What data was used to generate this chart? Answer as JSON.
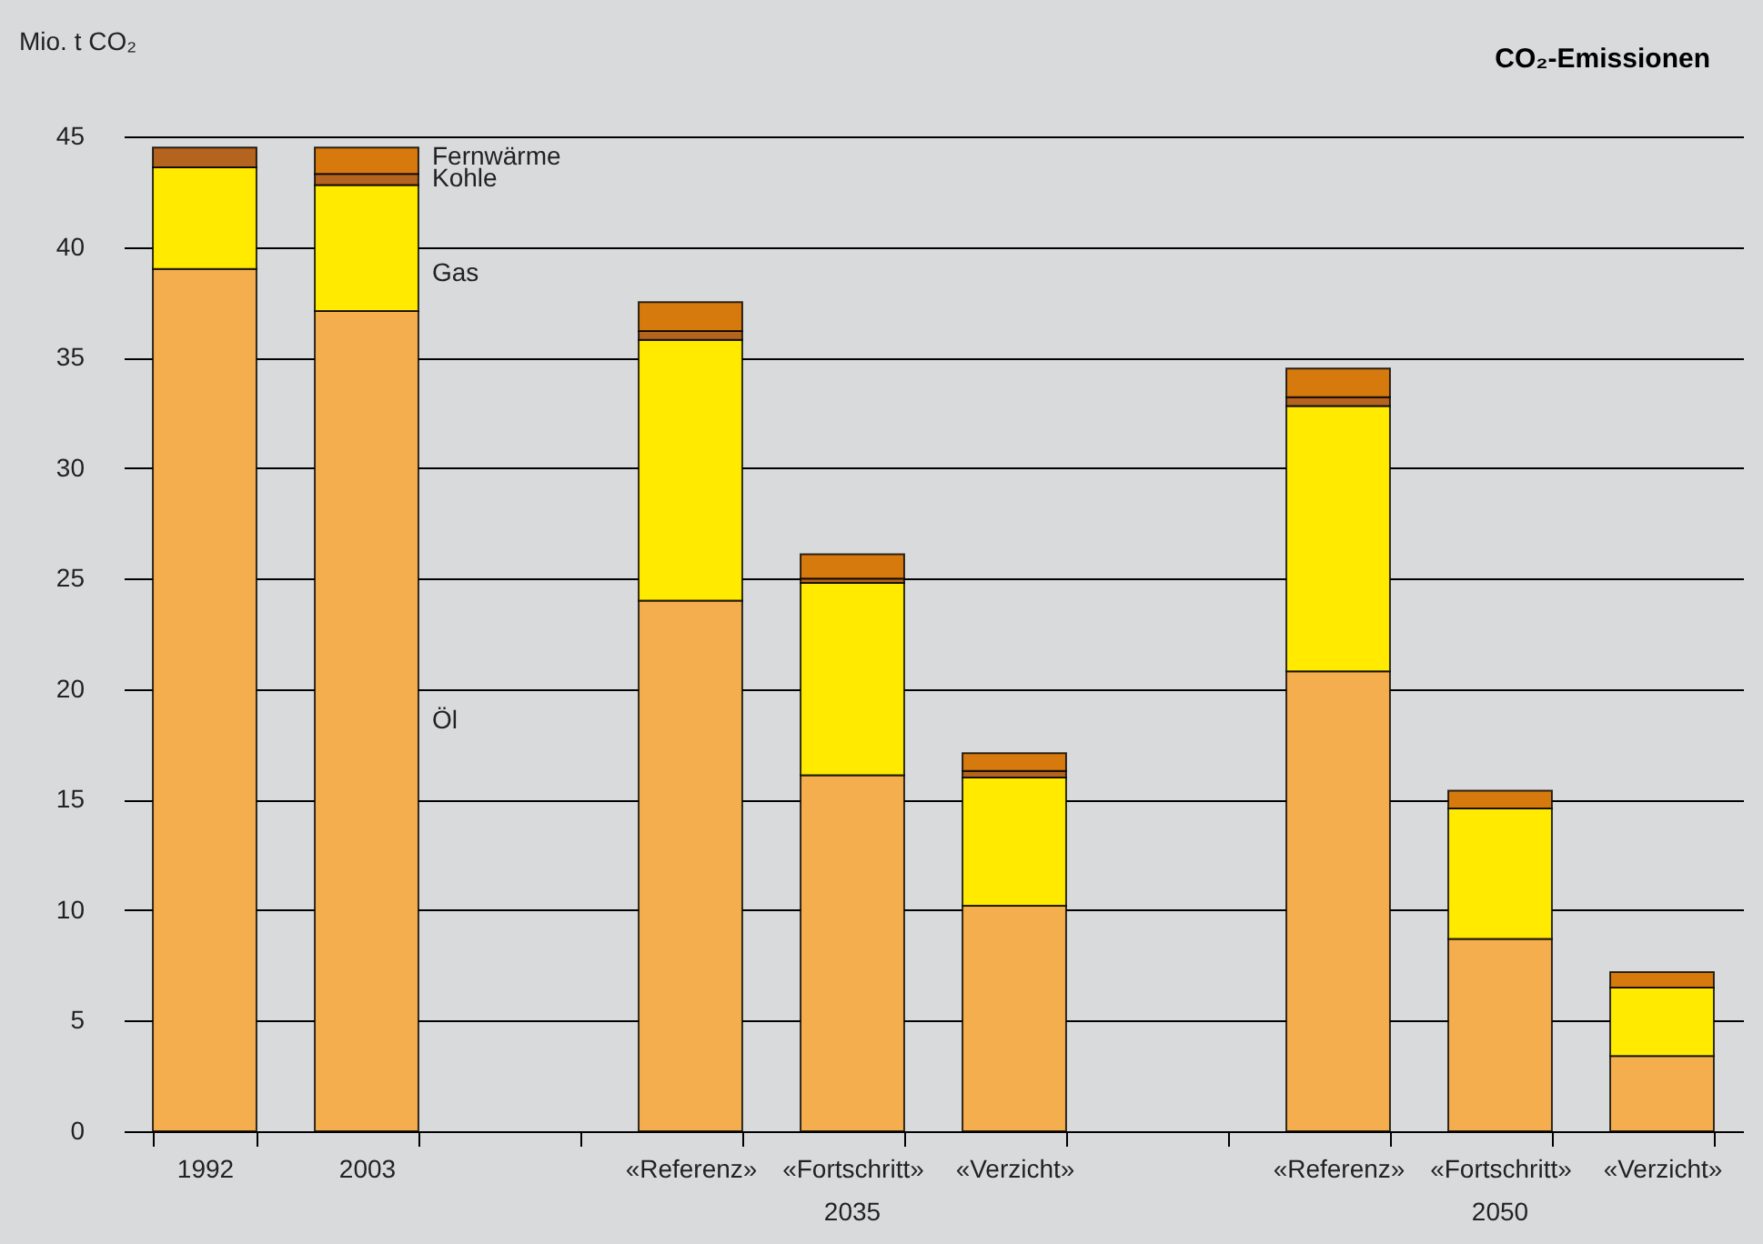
{
  "chart_data": {
    "type": "bar",
    "title": "CO₂-Emissionen",
    "ylabel": "Mio. t CO₂",
    "stacked": true,
    "grid": "y",
    "legend": false,
    "categories": [
      "1992",
      "2003",
      null,
      "«Referenz»",
      "«Fortschritt»",
      "«Verzicht»",
      null,
      "«Referenz»",
      "«Fortschritt»",
      "«Verzicht»"
    ],
    "series": [
      {
        "name": "Öl",
        "color": "#f5ae4e",
        "values": [
          39,
          37.1,
          null,
          24,
          16.1,
          10.2,
          null,
          20.8,
          8.7,
          3.4
        ]
      },
      {
        "name": "Gas",
        "color": "#ffea00",
        "values": [
          4.6,
          5.7,
          null,
          11.8,
          8.7,
          5.8,
          null,
          12.0,
          5.9,
          3.1
        ]
      },
      {
        "name": "Kohle",
        "color": "#b4641e",
        "values": [
          0.9,
          0.5,
          null,
          0.4,
          0.2,
          0.3,
          null,
          0.4,
          null,
          null
        ]
      },
      {
        "name": "Fernwärme",
        "color": "#d67a0e",
        "values": [
          null,
          1.2,
          null,
          1.3,
          1.1,
          0.8,
          null,
          1.3,
          0.8,
          0.7
        ]
      }
    ],
    "ylim": [
      0,
      45
    ],
    "yticks": [
      0,
      5,
      10,
      15,
      20,
      25,
      30,
      35,
      40,
      45
    ],
    "annotations": [
      "2035",
      "2050"
    ]
  }
}
